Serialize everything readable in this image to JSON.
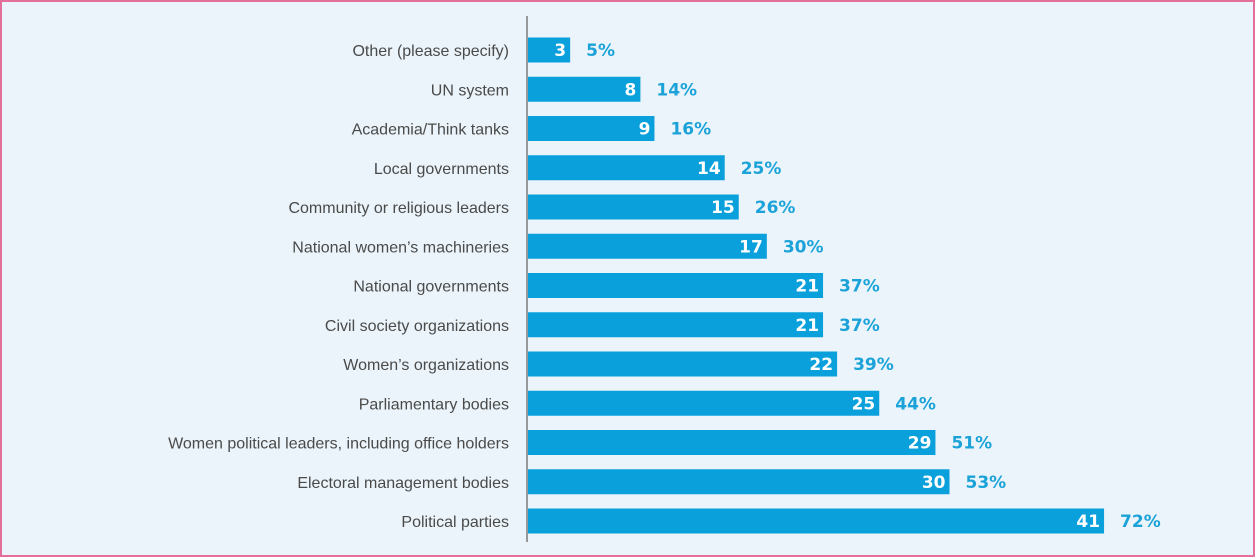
{
  "colors": {
    "bar": "#0aa0dc",
    "percent_text": "#1ba3d9",
    "axis": "#7a7a7a",
    "category_text": "#4a4a4a",
    "background": "#ebf4fa",
    "frame_border": "#e36f9a"
  },
  "chart_data": {
    "type": "bar",
    "orientation": "horizontal",
    "title": "",
    "xlabel": "",
    "ylabel": "",
    "xlim": [
      0,
      57
    ],
    "grid": false,
    "legend": "none",
    "categories": [
      "Other (please specify)",
      "UN system",
      "Academia/Think tanks",
      "Local governments",
      "Community or religious leaders",
      "National women’s machineries",
      "National governments",
      "Civil society organizations",
      "Women’s organizations",
      "Parliamentary bodies",
      "Women political leaders, including office holders",
      "Electoral management bodies",
      "Political parties"
    ],
    "values": [
      3,
      8,
      9,
      14,
      15,
      17,
      21,
      21,
      22,
      25,
      29,
      30,
      41
    ],
    "percent_labels": [
      "5%",
      "14%",
      "16%",
      "25%",
      "26%",
      "30%",
      "37%",
      "37%",
      "39%",
      "44%",
      "51%",
      "53%",
      "72%"
    ]
  }
}
